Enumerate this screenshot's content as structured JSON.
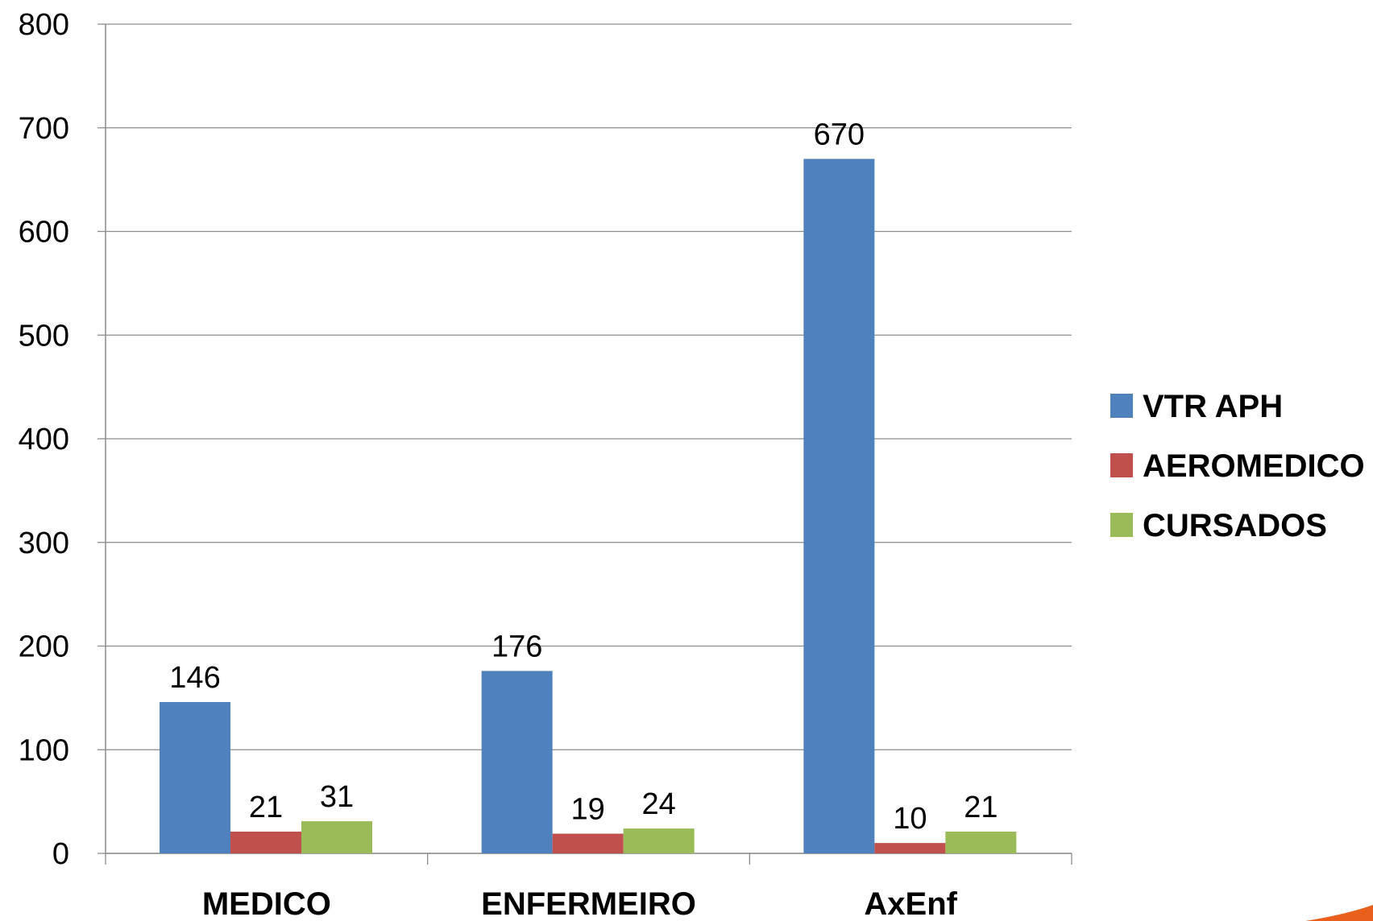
{
  "chart_data": {
    "type": "bar",
    "categories": [
      "MEDICO",
      "ENFERMEIRO",
      "AxEnf"
    ],
    "series": [
      {
        "name": "VTR APH",
        "color": "#4F81BD",
        "values": [
          146,
          176,
          670
        ]
      },
      {
        "name": "AEROMEDICO",
        "color": "#C0504D",
        "values": [
          21,
          19,
          10
        ]
      },
      {
        "name": "CURSADOS",
        "color": "#9BBB59",
        "values": [
          31,
          24,
          21
        ]
      }
    ],
    "ylim": [
      0,
      800
    ],
    "yticks": [
      0,
      100,
      200,
      300,
      400,
      500,
      600,
      700,
      800
    ],
    "grid": true,
    "legend": "right",
    "title": "",
    "xlabel": "",
    "ylabel": ""
  },
  "decoration": {
    "accent_color": "#E8601C"
  }
}
